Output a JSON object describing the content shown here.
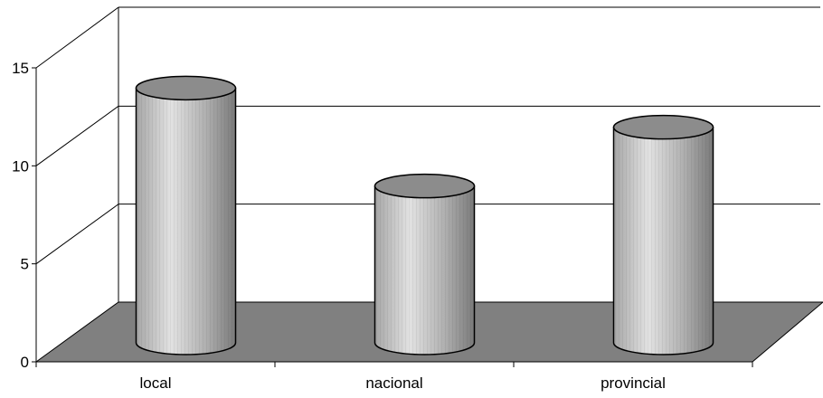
{
  "chart_data": {
    "type": "bar",
    "style": "3d-cylinder",
    "categories": [
      "local",
      "nacional",
      "provincial"
    ],
    "values": [
      13,
      8,
      11
    ],
    "ylim": [
      0,
      15
    ],
    "yticks": [
      "0",
      "5",
      "10",
      "15"
    ],
    "grid": true,
    "legend": "none",
    "colors": {
      "floor": "#808080",
      "cylinder_top": "#8c8c8c",
      "cylinder_light": "#e2e2e2",
      "cylinder_dark": "#7a7a7a",
      "lines": "#000000"
    }
  }
}
